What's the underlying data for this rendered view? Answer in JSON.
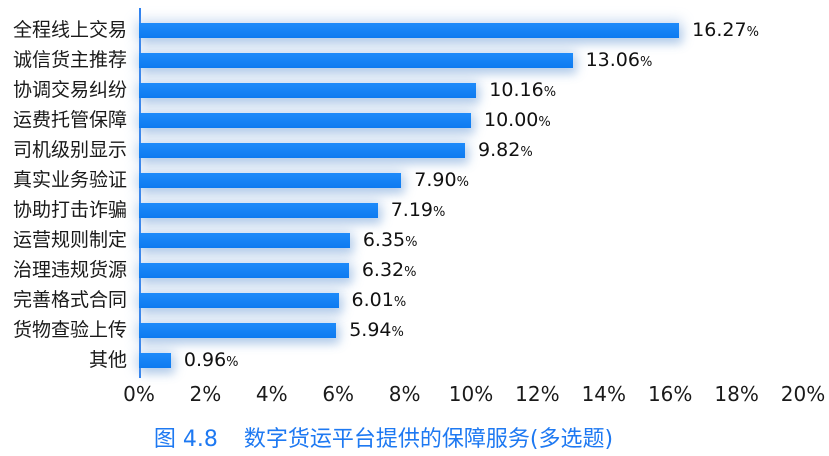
{
  "chart_data": {
    "type": "bar",
    "orientation": "horizontal",
    "title": "图 4.8　数字货运平台提供的保障服务(多选题)",
    "title_prefix": "图 4.8",
    "title_text": "数字货运平台提供的保障服务(多选题)",
    "categories": [
      "全程线上交易",
      "诚信货主推荐",
      "协调交易纠纷",
      "运费托管保障",
      "司机级别显示",
      "真实业务验证",
      "协助打击诈骗",
      "运营规则制定",
      "治理违规货源",
      "完善格式合同",
      "货物查验上传",
      "其他"
    ],
    "values": [
      16.27,
      13.06,
      10.16,
      10.0,
      9.82,
      7.9,
      7.19,
      6.35,
      6.32,
      6.01,
      5.94,
      0.96
    ],
    "value_unit": "%",
    "x_ticks": [
      "0%",
      "2%",
      "4%",
      "6%",
      "8%",
      "10%",
      "12%",
      "14%",
      "16%",
      "18%",
      "20%"
    ],
    "xlim": [
      0,
      20
    ],
    "grid": false,
    "legend": "none",
    "bar_color": "#127ef2",
    "axis_color": "#2f82f0",
    "title_color": "#1e79f2"
  }
}
